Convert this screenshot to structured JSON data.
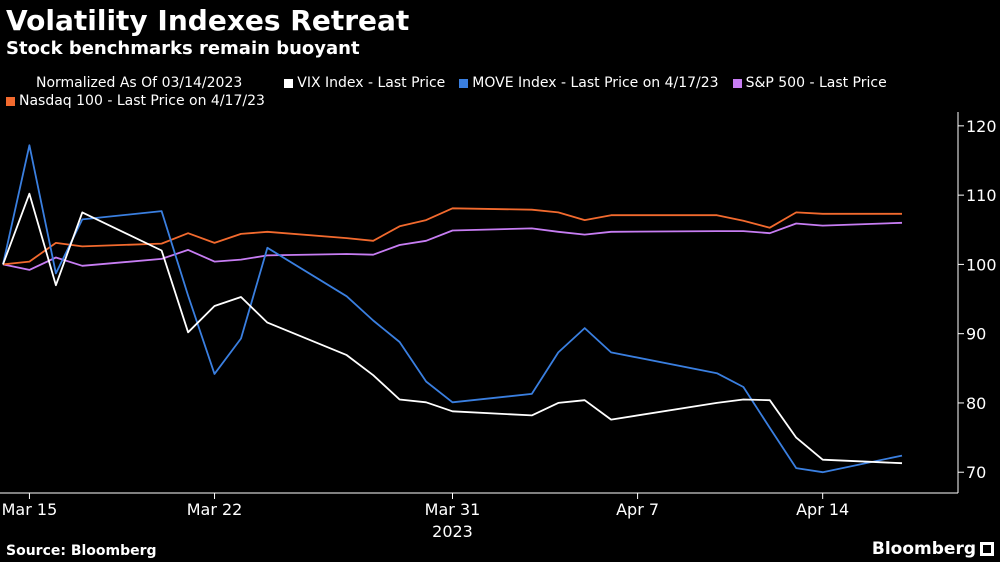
{
  "title": "Volatility Indexes Retreat",
  "subtitle": "Stock benchmarks remain buoyant",
  "legend_note": "Normalized As Of 03/14/2023",
  "source": "Source: Bloomberg",
  "brand": "Bloomberg",
  "colors": {
    "background": "#000000",
    "axis": "#ffffff",
    "vix": "#ffffff",
    "move": "#3a7fe0",
    "spx": "#c77df3",
    "ndx": "#f26a2e"
  },
  "chart_data": {
    "type": "line",
    "title": "Volatility Indexes Retreat",
    "subtitle": "Stock benchmarks remain buoyant",
    "note": "Normalized As Of 03/14/2023",
    "x_tick_labels": [
      "Mar 15",
      "Mar 22",
      "Mar 31",
      "Apr 7",
      "Apr 14"
    ],
    "x_tick_dates": [
      "2023-03-15",
      "2023-03-22",
      "2023-03-31",
      "2023-04-07",
      "2023-04-14"
    ],
    "x_year_label": "2023",
    "y_ticks": [
      70,
      80,
      90,
      100,
      110,
      120
    ],
    "ylim": [
      67,
      122
    ],
    "y_axis_side": "right",
    "grid": false,
    "legend_position": "top",
    "x": [
      "2023-03-14",
      "2023-03-15",
      "2023-03-16",
      "2023-03-17",
      "2023-03-20",
      "2023-03-21",
      "2023-03-22",
      "2023-03-23",
      "2023-03-24",
      "2023-03-27",
      "2023-03-28",
      "2023-03-29",
      "2023-03-30",
      "2023-03-31",
      "2023-04-03",
      "2023-04-04",
      "2023-04-05",
      "2023-04-06",
      "2023-04-10",
      "2023-04-11",
      "2023-04-12",
      "2023-04-13",
      "2023-04-14",
      "2023-04-17"
    ],
    "series": [
      {
        "name": "VIX Index - Last Price",
        "color": "#ffffff",
        "values": [
          100,
          110.2,
          97,
          107.5,
          102,
          90.2,
          94,
          95.3,
          91.6,
          86.9,
          84,
          80.5,
          80.1,
          78.8,
          78.2,
          80,
          80.4,
          77.6,
          80,
          80.5,
          80.4,
          75,
          71.8,
          71.3
        ]
      },
      {
        "name": "MOVE Index - Last Price on 4/17/23",
        "color": "#3a7fe0",
        "values": [
          100,
          117.2,
          98.7,
          106.5,
          107.7,
          95.5,
          84.2,
          89.3,
          102.4,
          95.4,
          91.9,
          88.8,
          83.1,
          80.1,
          81.3,
          87.3,
          90.8,
          87.3,
          84.3,
          82.3,
          76.4,
          70.6,
          70,
          72.4
        ]
      },
      {
        "name": "S&P 500 - Last Price",
        "color": "#c77df3",
        "values": [
          100,
          99.2,
          101,
          99.8,
          100.8,
          102.1,
          100.4,
          100.7,
          101.3,
          101.5,
          101.4,
          102.8,
          103.4,
          104.9,
          105.2,
          104.7,
          104.3,
          104.7,
          104.8,
          104.8,
          104.5,
          105.9,
          105.6,
          106
        ]
      },
      {
        "name": "Nasdaq 100 - Last Price on 4/17/23",
        "color": "#f26a2e",
        "values": [
          100,
          100.4,
          103.1,
          102.6,
          103,
          104.5,
          103.1,
          104.4,
          104.7,
          103.8,
          103.4,
          105.5,
          106.4,
          108.1,
          107.9,
          107.5,
          106.4,
          107.1,
          107.1,
          106.3,
          105.3,
          107.5,
          107.3,
          107.3
        ]
      }
    ]
  }
}
